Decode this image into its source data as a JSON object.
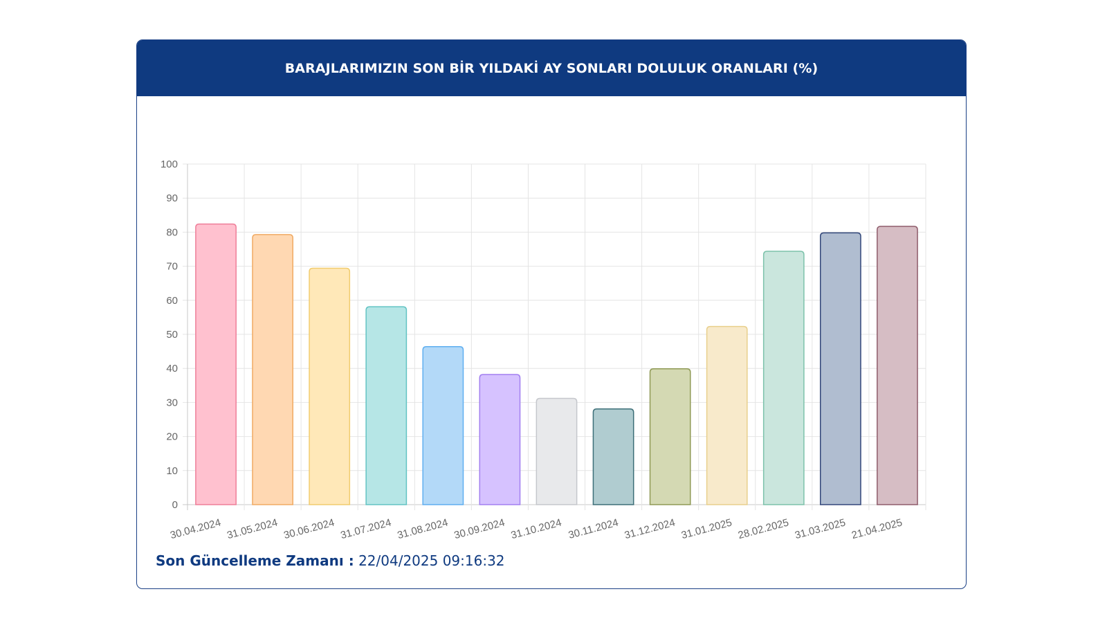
{
  "header": {
    "title": "BARAJLARIMIZIN SON BİR YILDAKİ AY SONLARI DOLULUK ORANLARI (%)"
  },
  "footer": {
    "label": "Son Güncelleme Zamanı :",
    "value": "22/04/2025 09:16:32"
  },
  "chart_data": {
    "type": "bar",
    "title": "BARAJLARIMIZIN SON BİR YILDAKİ AY SONLARI DOLULUK ORANLARI (%)",
    "xlabel": "",
    "ylabel": "",
    "ylim": [
      0,
      100
    ],
    "yticks": [
      0,
      10,
      20,
      30,
      40,
      50,
      60,
      70,
      80,
      90,
      100
    ],
    "grid": true,
    "legend": "none",
    "categories": [
      "30.04.2024",
      "31.05.2024",
      "30.06.2024",
      "31.07.2024",
      "31.08.2024",
      "30.09.2024",
      "31.10.2024",
      "30.11.2024",
      "31.12.2024",
      "31.01.2025",
      "28.02.2025",
      "31.03.2025",
      "21.04.2025"
    ],
    "values": [
      82.4,
      79.3,
      69.4,
      58.1,
      46.4,
      38.2,
      31.2,
      28.1,
      39.9,
      52.3,
      74.4,
      79.8,
      81.7
    ],
    "colors": [
      {
        "fill": "#ffc1cf",
        "stroke": "#ee7e99"
      },
      {
        "fill": "#ffd8b2",
        "stroke": "#f0aa63"
      },
      {
        "fill": "#ffe8b8",
        "stroke": "#f1cc6e"
      },
      {
        "fill": "#b6e6e6",
        "stroke": "#62c3c3"
      },
      {
        "fill": "#b3d9f8",
        "stroke": "#5eaef0"
      },
      {
        "fill": "#d6c2ff",
        "stroke": "#a27ff0"
      },
      {
        "fill": "#e8e9eb",
        "stroke": "#c5c7cc"
      },
      {
        "fill": "#b0ccd0",
        "stroke": "#3d6f78"
      },
      {
        "fill": "#d4d9b3",
        "stroke": "#8f9a55"
      },
      {
        "fill": "#f8eacb",
        "stroke": "#e8cf8c"
      },
      {
        "fill": "#cae6dd",
        "stroke": "#7cc2aa"
      },
      {
        "fill": "#b0bdd0",
        "stroke": "#32477a"
      },
      {
        "fill": "#d6bdc4",
        "stroke": "#8f5c6b"
      }
    ]
  }
}
